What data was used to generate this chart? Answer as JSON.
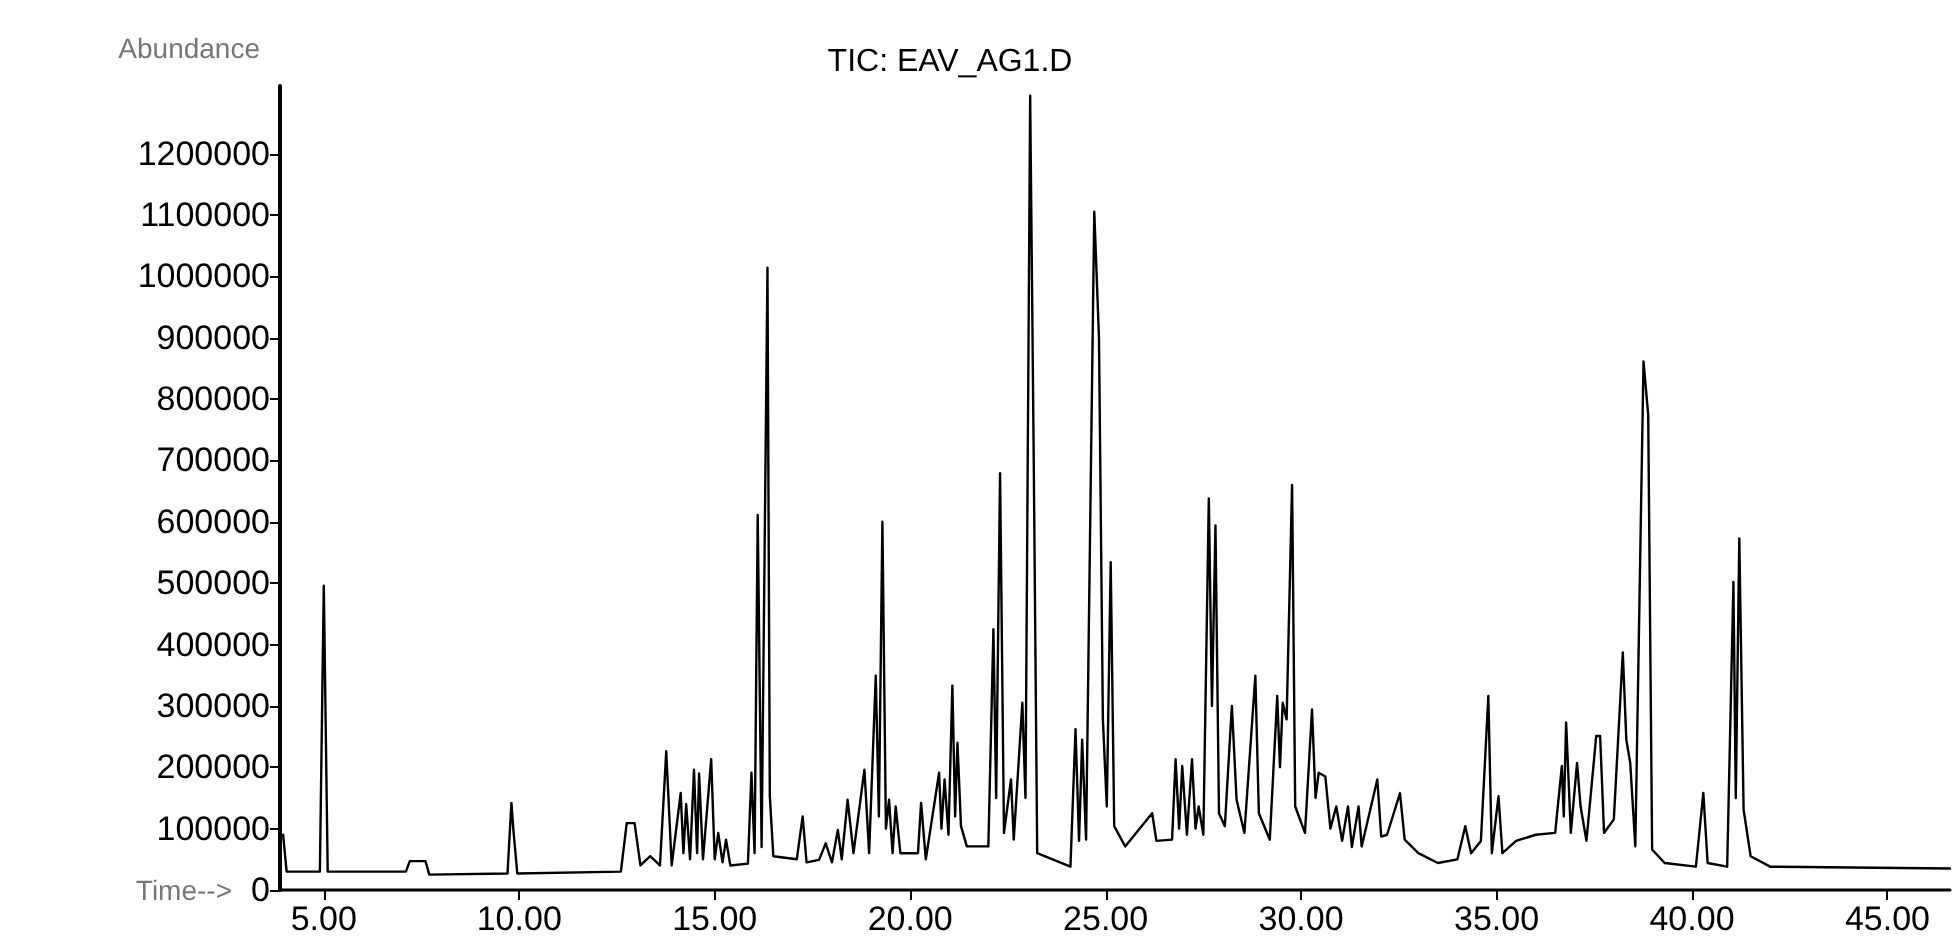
{
  "chart_data": {
    "type": "line",
    "title": "TIC: EAV_AG1.D",
    "xlabel": "Time-->",
    "ylabel": "Abundance",
    "xlim": [
      3.88,
      46.6
    ],
    "ylim": [
      0,
      1310000
    ],
    "xticks": [
      {
        "value": 5,
        "label": "5.00"
      },
      {
        "value": 10,
        "label": "10.00"
      },
      {
        "value": 15,
        "label": "15.00"
      },
      {
        "value": 20,
        "label": "20.00"
      },
      {
        "value": 25,
        "label": "25.00"
      },
      {
        "value": 30,
        "label": "30.00"
      },
      {
        "value": 35,
        "label": "35.00"
      },
      {
        "value": 40,
        "label": "40.00"
      },
      {
        "value": 45,
        "label": "45.00"
      }
    ],
    "yticks": [
      0,
      100000,
      200000,
      300000,
      400000,
      500000,
      600000,
      700000,
      800000,
      900000,
      1000000,
      1100000,
      1200000
    ],
    "grid": false,
    "marker": "none",
    "line_style": "solid",
    "series": [
      {
        "color": "#000000",
        "x": [
          3.96,
          4.05,
          4.9,
          5.0,
          5.1,
          7.1,
          7.2,
          7.6,
          7.7,
          9.7,
          9.8,
          9.85,
          9.95,
          12.6,
          12.75,
          12.95,
          13.1,
          13.35,
          13.6,
          13.76,
          13.9,
          14.13,
          14.2,
          14.27,
          14.37,
          14.47,
          14.55,
          14.6,
          14.7,
          14.91,
          15.0,
          15.09,
          15.2,
          15.29,
          15.4,
          15.85,
          15.94,
          16.02,
          16.1,
          16.2,
          16.35,
          16.41,
          16.5,
          17.1,
          17.25,
          17.35,
          17.67,
          17.84,
          18.0,
          18.15,
          18.25,
          18.4,
          18.55,
          18.83,
          18.95,
          19.12,
          19.2,
          19.29,
          19.38,
          19.46,
          19.55,
          19.63,
          19.75,
          20.2,
          20.28,
          20.4,
          20.74,
          20.8,
          20.88,
          20.98,
          21.08,
          21.15,
          21.21,
          21.3,
          21.45,
          22.0,
          22.13,
          22.2,
          22.3,
          22.4,
          22.58,
          22.65,
          22.87,
          22.95,
          23.07,
          23.16,
          23.25,
          24.1,
          24.23,
          24.32,
          24.4,
          24.5,
          24.71,
          24.83,
          24.93,
          25.03,
          25.13,
          25.22,
          25.5,
          26.19,
          26.3,
          26.7,
          26.79,
          26.88,
          26.96,
          27.08,
          27.21,
          27.3,
          27.38,
          27.5,
          27.64,
          27.72,
          27.81,
          27.9,
          28.05,
          28.23,
          28.35,
          28.55,
          28.83,
          28.92,
          29.2,
          29.39,
          29.46,
          29.53,
          29.63,
          29.77,
          29.85,
          30.1,
          30.28,
          30.37,
          30.45,
          30.62,
          30.75,
          30.9,
          31.05,
          31.2,
          31.3,
          31.47,
          31.55,
          31.95,
          32.05,
          32.2,
          32.53,
          32.65,
          33.0,
          33.5,
          34.0,
          34.2,
          34.35,
          34.6,
          34.79,
          34.88,
          35.05,
          35.15,
          35.5,
          36.0,
          36.5,
          36.67,
          36.72,
          36.78,
          36.9,
          37.06,
          37.15,
          37.3,
          37.55,
          37.65,
          37.75,
          38.0,
          38.23,
          38.32,
          38.42,
          38.55,
          38.76,
          38.88,
          38.98,
          39.3,
          40.1,
          40.29,
          40.4,
          40.9,
          41.06,
          41.12,
          41.21,
          41.32,
          41.5,
          42.0,
          46.6
        ],
        "values": [
          90000,
          30000,
          30000,
          496000,
          30000,
          30000,
          47000,
          47000,
          25000,
          27000,
          142000,
          98000,
          27000,
          30000,
          109000,
          109000,
          40000,
          55000,
          40000,
          226000,
          40000,
          158000,
          60000,
          140000,
          50000,
          196000,
          60000,
          190000,
          50000,
          213000,
          50000,
          93000,
          45000,
          82000,
          40000,
          43000,
          191000,
          60000,
          611000,
          70000,
          1014000,
          153000,
          55000,
          50000,
          120000,
          45000,
          49000,
          76000,
          45000,
          98000,
          50000,
          147000,
          60000,
          196000,
          60000,
          349000,
          120000,
          600000,
          100000,
          147000,
          60000,
          136000,
          60000,
          60000,
          142000,
          50000,
          191000,
          100000,
          180000,
          90000,
          333000,
          120000,
          240000,
          104000,
          71000,
          71000,
          425000,
          150000,
          679000,
          93000,
          180000,
          82000,
          305000,
          150000,
          1294000,
          709000,
          60000,
          38000,
          262000,
          80000,
          245000,
          82000,
          1105000,
          900000,
          278000,
          136000,
          534000,
          104000,
          71000,
          125000,
          80000,
          82000,
          213000,
          100000,
          202000,
          90000,
          213000,
          100000,
          136000,
          90000,
          638000,
          300000,
          594000,
          125000,
          104000,
          300000,
          147000,
          93000,
          349000,
          125000,
          82000,
          316000,
          200000,
          305000,
          278000,
          660000,
          136000,
          93000,
          294000,
          150000,
          191000,
          185000,
          100000,
          136000,
          80000,
          136000,
          70000,
          136000,
          71000,
          180000,
          87000,
          90000,
          158000,
          82000,
          60000,
          44000,
          50000,
          104000,
          60000,
          80000,
          316000,
          60000,
          153000,
          60000,
          80000,
          90000,
          93000,
          202000,
          120000,
          273000,
          93000,
          207000,
          136000,
          80000,
          251000,
          251000,
          93000,
          115000,
          387000,
          245000,
          207000,
          71000,
          861000,
          774000,
          66000,
          44000,
          38000,
          158000,
          44000,
          38000,
          502000,
          150000,
          573000,
          131000,
          55000,
          38000,
          35000
        ]
      }
    ]
  }
}
